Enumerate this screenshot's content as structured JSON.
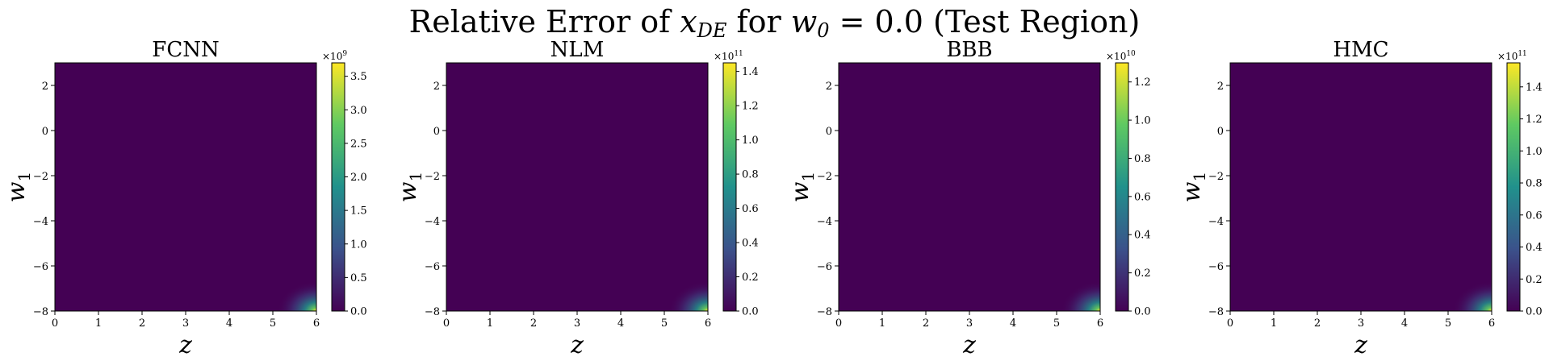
{
  "suptitle": {
    "prefix": "Relative Error of ",
    "var": "x",
    "var_sub": "DE",
    "middle": " for ",
    "param": "w",
    "param_sub": "0",
    "suffix": " = 0.0 (Test Region)"
  },
  "colormap": [
    "#440154",
    "#3b528b",
    "#21918c",
    "#5ec962",
    "#fde725"
  ],
  "chart_data": [
    {
      "type": "heatmap",
      "title": "FCNN",
      "xlabel": "z",
      "ylabel": "w",
      "ylabel_sub": "1",
      "xlim": [
        0,
        6
      ],
      "ylim": [
        -8,
        3
      ],
      "xticks": [
        0,
        1,
        2,
        3,
        4,
        5,
        6
      ],
      "yticks": [
        -8,
        -6,
        -4,
        -2,
        0,
        2
      ],
      "colorbar": {
        "min": 0,
        "max": 3.7,
        "ticks": [
          "0.0",
          "0.5",
          "1.0",
          "1.5",
          "2.0",
          "2.5",
          "3.0",
          "3.5"
        ],
        "tick_values": [
          0,
          0.5,
          1.0,
          1.5,
          2.0,
          2.5,
          3.0,
          3.5
        ],
        "multiplier_base": "×10",
        "multiplier_exp": "9"
      },
      "hotspot": {
        "z": 6,
        "w1": -8
      }
    },
    {
      "type": "heatmap",
      "title": "NLM",
      "xlabel": "z",
      "ylabel": "w",
      "ylabel_sub": "1",
      "xlim": [
        0,
        6
      ],
      "ylim": [
        -8,
        3
      ],
      "xticks": [
        0,
        1,
        2,
        3,
        4,
        5,
        6
      ],
      "yticks": [
        -8,
        -6,
        -4,
        -2,
        0,
        2
      ],
      "colorbar": {
        "min": 0,
        "max": 1.45,
        "ticks": [
          "0.0",
          "0.2",
          "0.4",
          "0.6",
          "0.8",
          "1.0",
          "1.2",
          "1.4"
        ],
        "tick_values": [
          0,
          0.2,
          0.4,
          0.6,
          0.8,
          1.0,
          1.2,
          1.4
        ],
        "multiplier_base": "×10",
        "multiplier_exp": "11"
      },
      "hotspot": {
        "z": 6,
        "w1": -8
      }
    },
    {
      "type": "heatmap",
      "title": "BBB",
      "xlabel": "z",
      "ylabel": "w",
      "ylabel_sub": "1",
      "xlim": [
        0,
        6
      ],
      "ylim": [
        -8,
        3
      ],
      "xticks": [
        0,
        1,
        2,
        3,
        4,
        5,
        6
      ],
      "yticks": [
        -8,
        -6,
        -4,
        -2,
        0,
        2
      ],
      "colorbar": {
        "min": 0,
        "max": 1.3,
        "ticks": [
          "0.0",
          "0.2",
          "0.4",
          "0.6",
          "0.8",
          "1.0",
          "1.2"
        ],
        "tick_values": [
          0,
          0.2,
          0.4,
          0.6,
          0.8,
          1.0,
          1.2
        ],
        "multiplier_base": "×10",
        "multiplier_exp": "10"
      },
      "hotspot": {
        "z": 6,
        "w1": -8
      }
    },
    {
      "type": "heatmap",
      "title": "HMC",
      "xlabel": "z",
      "ylabel": "w",
      "ylabel_sub": "1",
      "xlim": [
        0,
        6
      ],
      "ylim": [
        -8,
        3
      ],
      "xticks": [
        0,
        1,
        2,
        3,
        4,
        5,
        6
      ],
      "yticks": [
        -8,
        -6,
        -4,
        -2,
        0,
        2
      ],
      "colorbar": {
        "min": 0,
        "max": 1.55,
        "ticks": [
          "0.0",
          "0.2",
          "0.4",
          "0.6",
          "0.8",
          "1.0",
          "1.2",
          "1.4"
        ],
        "tick_values": [
          0,
          0.2,
          0.4,
          0.6,
          0.8,
          1.0,
          1.2,
          1.4
        ],
        "multiplier_base": "×10",
        "multiplier_exp": "11"
      },
      "hotspot": {
        "z": 6,
        "w1": -8
      }
    }
  ]
}
